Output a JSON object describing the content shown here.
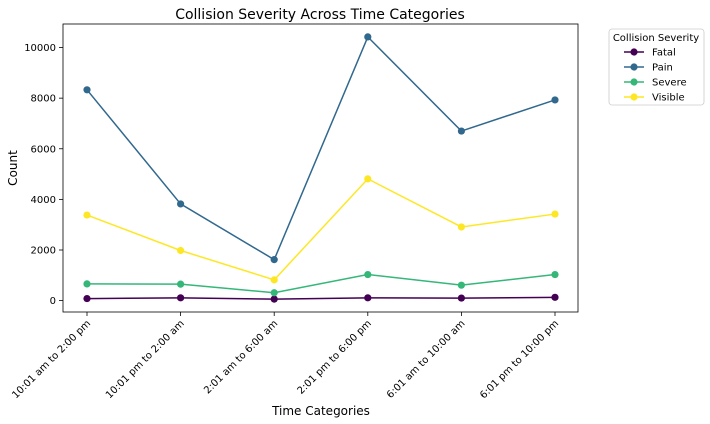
{
  "chart_data": {
    "type": "line",
    "title": "Collision Severity Across Time Categories",
    "xlabel": "Time Categories",
    "ylabel": "Count",
    "categories": [
      "10:01 am to 2:00 pm",
      "10:01 pm to 2:00 am",
      "2:01 am to 6:00 am",
      "2:01 pm to 6:00 pm",
      "6:01 am to 10:00 am",
      "6:01 pm to 10:00 pm"
    ],
    "ylim": [
      -450,
      10930
    ],
    "yticks": [
      0,
      2000,
      4000,
      6000,
      8000,
      10000
    ],
    "grid": false,
    "legend": {
      "title": "Collision Severity",
      "placement": "outside-top-right"
    },
    "series": [
      {
        "name": "Fatal",
        "color": "#440154",
        "values": [
          80,
          110,
          60,
          110,
          100,
          130
        ]
      },
      {
        "name": "Pain",
        "color": "#31688e",
        "values": [
          8330,
          3820,
          1620,
          10420,
          6700,
          7930
        ]
      },
      {
        "name": "Severe",
        "color": "#35b779",
        "values": [
          660,
          650,
          310,
          1030,
          610,
          1030
        ]
      },
      {
        "name": "Visible",
        "color": "#fde725",
        "values": [
          3380,
          1980,
          820,
          4810,
          2910,
          3420
        ]
      }
    ]
  }
}
